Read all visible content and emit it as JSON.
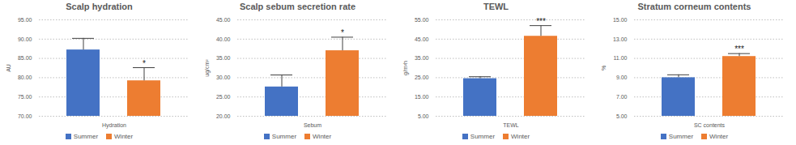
{
  "chart_data": [
    {
      "type": "bar",
      "title": "Scalp hydration",
      "y_label": "AU",
      "categories": [
        "Hydration"
      ],
      "series": [
        {
          "name": "Summer",
          "color": "#4472c4",
          "values": [
            87.2
          ],
          "errors": [
            3.0
          ]
        },
        {
          "name": "Winter",
          "color": "#ed7d31",
          "values": [
            79.2
          ],
          "errors": [
            3.4
          ]
        }
      ],
      "annotations": [
        {
          "series": "Winter",
          "category": "Hydration",
          "text": "*"
        }
      ],
      "ylim": [
        70,
        95
      ],
      "yticks": [
        {
          "value": 70,
          "label": "70.00"
        },
        {
          "value": 75,
          "label": "75.00"
        },
        {
          "value": 80,
          "label": "80.00"
        },
        {
          "value": 85,
          "label": "85.00"
        },
        {
          "value": 90,
          "label": "90.00"
        },
        {
          "value": 95,
          "label": "95.00"
        }
      ],
      "grid": true,
      "legend": "bottom"
    },
    {
      "type": "bar",
      "title": "Scalp sebum secretion rate",
      "y_label": "ug/cm²",
      "categories": [
        "Sebum"
      ],
      "series": [
        {
          "name": "Summer",
          "color": "#4472c4",
          "values": [
            27.6
          ],
          "errors": [
            3.1
          ]
        },
        {
          "name": "Winter",
          "color": "#ed7d31",
          "values": [
            37.0
          ],
          "errors": [
            3.5
          ]
        }
      ],
      "annotations": [
        {
          "series": "Winter",
          "category": "Sebum",
          "text": "*"
        }
      ],
      "ylim": [
        20,
        45
      ],
      "yticks": [
        {
          "value": 20,
          "label": "20.00"
        },
        {
          "value": 25,
          "label": "25.00"
        },
        {
          "value": 30,
          "label": "30.00"
        },
        {
          "value": 35,
          "label": "35.00"
        },
        {
          "value": 40,
          "label": "40.00"
        },
        {
          "value": 45,
          "label": "45.00"
        }
      ],
      "grid": true,
      "legend": "bottom"
    },
    {
      "type": "bar",
      "title": "TEWL",
      "y_label": "g/m²h",
      "categories": [
        "TEWL"
      ],
      "series": [
        {
          "name": "Summer",
          "color": "#4472c4",
          "values": [
            24.5
          ],
          "errors": [
            1.0
          ]
        },
        {
          "name": "Winter",
          "color": "#ed7d31",
          "values": [
            46.5
          ],
          "errors": [
            5.5
          ]
        }
      ],
      "annotations": [
        {
          "series": "Winter",
          "category": "TEWL",
          "text": "***"
        }
      ],
      "ylim": [
        5,
        55
      ],
      "yticks": [
        {
          "value": 5,
          "label": "5.00"
        },
        {
          "value": 15,
          "label": "15.00"
        },
        {
          "value": 25,
          "label": "25.00"
        },
        {
          "value": 35,
          "label": "35.00"
        },
        {
          "value": 45,
          "label": "45.00"
        },
        {
          "value": 55,
          "label": "55.00"
        }
      ],
      "grid": true,
      "legend": "bottom"
    },
    {
      "type": "bar",
      "title": "Stratum corneum contents",
      "y_label": "%",
      "categories": [
        "SC contents"
      ],
      "series": [
        {
          "name": "Summer",
          "color": "#4472c4",
          "values": [
            9.0
          ],
          "errors": [
            0.3
          ]
        },
        {
          "name": "Winter",
          "color": "#ed7d31",
          "values": [
            11.2
          ],
          "errors": [
            0.3
          ]
        }
      ],
      "annotations": [
        {
          "series": "Winter",
          "category": "SC contents",
          "text": "***"
        }
      ],
      "ylim": [
        5,
        15
      ],
      "yticks": [
        {
          "value": 5,
          "label": "5.00"
        },
        {
          "value": 7,
          "label": "7.00"
        },
        {
          "value": 9,
          "label": "9.00"
        },
        {
          "value": 11,
          "label": "11.00"
        },
        {
          "value": 13,
          "label": "13.00"
        },
        {
          "value": 15,
          "label": "15.00"
        }
      ],
      "grid": true,
      "legend": "bottom"
    }
  ]
}
